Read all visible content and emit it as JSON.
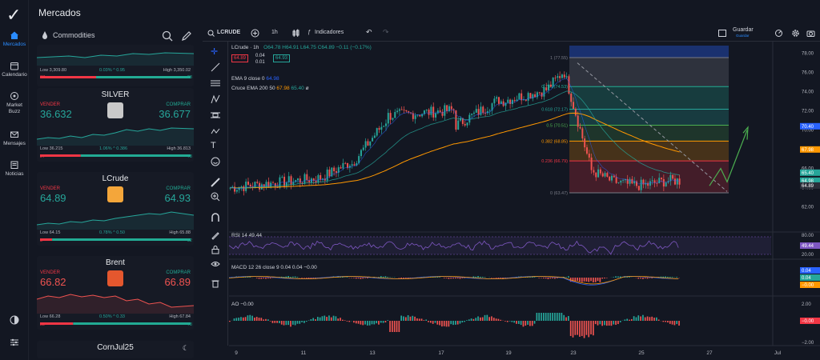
{
  "app": {
    "title": "Mercados"
  },
  "nav": [
    {
      "label": "Mercados",
      "icon": "home-icon",
      "active": true
    },
    {
      "label": "Calendario",
      "icon": "calendar-icon",
      "active": false
    },
    {
      "label": "Market Buzz",
      "icon": "market-buzz-icon",
      "active": false
    },
    {
      "label": "Mensajes",
      "icon": "mail-icon",
      "active": false
    },
    {
      "label": "Noticias",
      "icon": "news-icon",
      "active": false
    }
  ],
  "market": {
    "category": "Commodities",
    "top_card": {
      "low": "Low 3,309.80",
      "chg": "0.03%",
      "chg2": "0.95",
      "high": "High 3,350.02",
      "bar_left": "37",
      "bar_right": "63"
    },
    "cards": [
      {
        "name": "SILVER",
        "sell_label": "VENDER",
        "buy_label": "COMPRAR",
        "sell": "36.632",
        "buy": "36.677",
        "low": "Low 36.215",
        "chg": "1.06%",
        "chg2": "0.386",
        "high": "High 36.813",
        "bar_left": "27",
        "bar_right": "73",
        "color": "#26a69a"
      },
      {
        "name": "LCrude",
        "sell_label": "VENDER",
        "buy_label": "COMPRAR",
        "sell": "64.89",
        "buy": "64.93",
        "low": "Low 64.15",
        "chg": "0.78%",
        "chg2": "0.50",
        "high": "High 65.88",
        "bar_left": "8",
        "bar_right": "92",
        "color": "#26a69a"
      },
      {
        "name": "Brent",
        "sell_label": "VENDER",
        "buy_label": "COMPRAR",
        "sell": "66.82",
        "buy": "66.89",
        "low": "Low 66.28",
        "chg": "0.50%",
        "chg2": "0.33",
        "high": "High 67.84",
        "bar_left": "22",
        "bar_right": "78",
        "color": "#ef5350"
      }
    ],
    "bottom_card": {
      "name": "CornJul25"
    }
  },
  "toolbar": {
    "symbol": "LCRUDE",
    "interval": "1h",
    "indicators": "Indicadores",
    "save": "Guardar",
    "save_sub": "Guardar"
  },
  "legend": {
    "title": "LCrude · 1h",
    "ohlc": "O64.78 H64.91 L64.75 C64.89 −0.11 (−0.17%)",
    "sell_box": "64.89",
    "spread_top": "0.04",
    "spread_bot": "0.01",
    "buy_box": "64.93",
    "ema": "EMA 9 close 0",
    "ema_val": "64.98",
    "cross": "Cruce EMA 200 50",
    "cross_v1": "67.98",
    "cross_v2": "65.40",
    "cross_v3": "ø"
  },
  "fib": [
    {
      "label": "1 (77.55)",
      "color": "#787b86"
    },
    {
      "label": "0.786 (74.53)",
      "color": "#22ab94"
    },
    {
      "label": "0.618 (72.17)",
      "color": "#26a69a"
    },
    {
      "label": "0.5 (70.51)",
      "color": "#4caf50"
    },
    {
      "label": "0.382 (68.85)",
      "color": "#ff9800"
    },
    {
      "label": "0.236 (66.79)",
      "color": "#f23645"
    },
    {
      "label": "0 (63.47)",
      "color": "#787b86"
    }
  ],
  "price_axis": [
    "78.00",
    "76.00",
    "74.00",
    "72.00",
    "70.00",
    "68.00",
    "66.00",
    "64.00",
    "62.00"
  ],
  "price_tags": [
    {
      "value": "70.40",
      "color": "#2962ff"
    },
    {
      "value": "67.98",
      "color": "#ff9800"
    },
    {
      "value": "65.40",
      "color": "#26a69a"
    },
    {
      "value": "64.98",
      "color": "#26a69a"
    },
    {
      "value": "64.89",
      "color": "#2a2e39"
    }
  ],
  "rsi": {
    "label": "RSI",
    "params": "14",
    "value": "49.44",
    "axis": [
      "80.00",
      "20.00"
    ],
    "tag": "49.44"
  },
  "macd": {
    "label": "MACD",
    "params": "12 26 close 9",
    "v1": "0.04",
    "v2": "0.04",
    "v3": "−0.00",
    "axis": [
      "0.00"
    ],
    "tags": [
      "0.04",
      "0.04",
      "−0.00"
    ]
  },
  "ao": {
    "label": "AO",
    "value": "−0.00",
    "axis": [
      "2.00",
      "−2.00"
    ],
    "tag": "−0.00"
  },
  "time_axis": [
    "9",
    "11",
    "13",
    "17",
    "19",
    "23",
    "25",
    "27",
    "Jul"
  ]
}
